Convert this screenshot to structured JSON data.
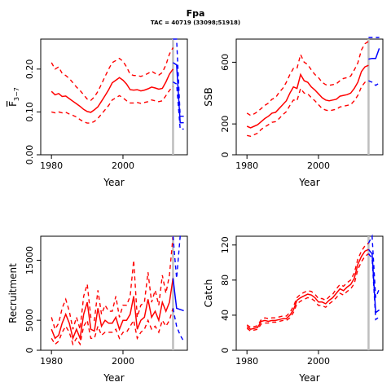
{
  "page": {
    "title": "Fpa",
    "subtitle": "TAC = 40719 (33098;51918)"
  },
  "colors": {
    "historic": "#ff0000",
    "forecast": "#0000ff",
    "divider": "#bebebe"
  },
  "chart_data": [
    {
      "type": "line",
      "id": "fbar",
      "ylabel": "F3-7",
      "ylabel_main": "F",
      "ylabel_sub": "3−7",
      "xlabel": "Year",
      "xlim": [
        1977,
        2018
      ],
      "ylim": [
        0,
        0.27
      ],
      "xticks": [
        1980,
        2000
      ],
      "yticks": [
        0.0,
        0.1,
        0.2
      ],
      "ytick_labels": [
        "0.00",
        "0.10",
        "0.20"
      ],
      "divider_year": 2014,
      "years": [
        1980,
        1981,
        1982,
        1983,
        1984,
        1985,
        1986,
        1987,
        1988,
        1989,
        1990,
        1991,
        1992,
        1993,
        1994,
        1995,
        1996,
        1997,
        1998,
        1999,
        2000,
        2001,
        2002,
        2003,
        2004,
        2005,
        2006,
        2007,
        2008,
        2009,
        2010,
        2011,
        2012,
        2013,
        2014
      ],
      "estimate": [
        0.148,
        0.14,
        0.143,
        0.136,
        0.137,
        0.131,
        0.125,
        0.119,
        0.113,
        0.106,
        0.101,
        0.099,
        0.105,
        0.112,
        0.125,
        0.138,
        0.152,
        0.168,
        0.174,
        0.18,
        0.174,
        0.165,
        0.152,
        0.151,
        0.152,
        0.149,
        0.151,
        0.154,
        0.158,
        0.156,
        0.153,
        0.155,
        0.17,
        0.188,
        0.2
      ],
      "lower": [
        0.1,
        0.098,
        0.1,
        0.098,
        0.099,
        0.095,
        0.092,
        0.088,
        0.082,
        0.077,
        0.074,
        0.074,
        0.078,
        0.085,
        0.095,
        0.105,
        0.115,
        0.128,
        0.133,
        0.138,
        0.133,
        0.126,
        0.121,
        0.121,
        0.122,
        0.12,
        0.122,
        0.124,
        0.128,
        0.126,
        0.124,
        0.126,
        0.138,
        0.15,
        0.16
      ],
      "upper": [
        0.215,
        0.2,
        0.205,
        0.19,
        0.185,
        0.178,
        0.168,
        0.158,
        0.15,
        0.14,
        0.13,
        0.127,
        0.135,
        0.148,
        0.165,
        0.183,
        0.2,
        0.215,
        0.22,
        0.225,
        0.218,
        0.205,
        0.188,
        0.185,
        0.185,
        0.183,
        0.186,
        0.19,
        0.195,
        0.19,
        0.186,
        0.192,
        0.21,
        0.235,
        0.25
      ],
      "forecast_years": [
        2014,
        2015,
        2016,
        2017
      ],
      "forecast_estimate": [
        0.215,
        0.21,
        0.075,
        0.075
      ],
      "forecast_lower": [
        0.17,
        0.165,
        0.06,
        0.06
      ],
      "forecast_upper": [
        0.27,
        0.27,
        0.09,
        0.09
      ]
    },
    {
      "type": "line",
      "id": "ssb",
      "ylabel": "SSB",
      "xlabel": "Year",
      "xlim": [
        1977,
        2018
      ],
      "ylim": [
        0,
        750
      ],
      "xticks": [
        1980,
        2000
      ],
      "yticks": [
        0,
        200,
        600
      ],
      "ytick_labels": [
        "0",
        "200",
        "600"
      ],
      "divider_year": 2014,
      "years": [
        1980,
        1981,
        1982,
        1983,
        1984,
        1985,
        1986,
        1987,
        1988,
        1989,
        1990,
        1991,
        1992,
        1993,
        1994,
        1995,
        1996,
        1997,
        1998,
        1999,
        2000,
        2001,
        2002,
        2003,
        2004,
        2005,
        2006,
        2007,
        2008,
        2009,
        2010,
        2011,
        2012,
        2013,
        2014
      ],
      "estimate": [
        185,
        175,
        185,
        195,
        215,
        235,
        250,
        270,
        275,
        300,
        325,
        350,
        400,
        440,
        430,
        520,
        480,
        470,
        440,
        420,
        395,
        370,
        355,
        350,
        355,
        360,
        380,
        385,
        390,
        400,
        430,
        470,
        540,
        570,
        580
      ],
      "lower": [
        125,
        120,
        130,
        140,
        165,
        180,
        195,
        210,
        215,
        235,
        260,
        280,
        320,
        355,
        350,
        430,
        400,
        395,
        370,
        350,
        325,
        300,
        290,
        285,
        290,
        295,
        310,
        315,
        320,
        325,
        350,
        385,
        440,
        470,
        475
      ],
      "upper": [
        270,
        255,
        265,
        280,
        300,
        320,
        335,
        360,
        370,
        405,
        430,
        470,
        520,
        560,
        560,
        650,
        600,
        585,
        550,
        520,
        500,
        470,
        455,
        450,
        455,
        460,
        480,
        495,
        500,
        510,
        550,
        595,
        680,
        720,
        735
      ],
      "forecast_years": [
        2014,
        2015,
        2016,
        2017
      ],
      "forecast_estimate": [
        620,
        625,
        625,
        690
      ],
      "forecast_lower": [
        480,
        470,
        450,
        465
      ],
      "forecast_upper": [
        780,
        790,
        805,
        830
      ]
    },
    {
      "type": "line",
      "id": "recruitment",
      "ylabel": "Recruitment",
      "xlabel": "Year",
      "xlim": [
        1977,
        2018
      ],
      "ylim": [
        0,
        19000
      ],
      "xticks": [
        1980,
        2000
      ],
      "yticks": [
        0,
        5000,
        15000
      ],
      "ytick_labels": [
        "0",
        "5000",
        "15000"
      ],
      "divider_year": 2014,
      "years": [
        1980,
        1981,
        1982,
        1983,
        1984,
        1985,
        1986,
        1987,
        1988,
        1989,
        1990,
        1991,
        1992,
        1993,
        1994,
        1995,
        1996,
        1997,
        1998,
        1999,
        2000,
        2001,
        2002,
        2003,
        2004,
        2005,
        2006,
        2007,
        2008,
        2009,
        2010,
        2011,
        2012,
        2013,
        2014
      ],
      "estimate": [
        3500,
        2000,
        2500,
        4500,
        6000,
        4500,
        2000,
        3500,
        2000,
        6000,
        8000,
        3500,
        3200,
        7000,
        4000,
        5000,
        4500,
        4500,
        5500,
        3500,
        5000,
        5000,
        6000,
        9000,
        3500,
        5000,
        5500,
        8500,
        5500,
        6500,
        5000,
        8000,
        6500,
        8000,
        12000
      ],
      "lower": [
        2000,
        1000,
        1500,
        3000,
        4000,
        3000,
        1000,
        2000,
        1000,
        4000,
        5000,
        2000,
        2000,
        4000,
        2500,
        3000,
        3000,
        3000,
        3500,
        2000,
        3000,
        3000,
        4000,
        5000,
        2000,
        3000,
        3500,
        5000,
        3500,
        4000,
        3000,
        5000,
        4000,
        5000,
        7000
      ],
      "upper": [
        5500,
        3500,
        4500,
        7000,
        8500,
        6500,
        3500,
        5500,
        3500,
        9000,
        11000,
        5500,
        5000,
        10000,
        6000,
        7500,
        6500,
        6500,
        9000,
        5500,
        7500,
        7500,
        9000,
        15000,
        5500,
        7500,
        8000,
        13000,
        8000,
        10000,
        7500,
        12500,
        9500,
        12500,
        19000
      ],
      "forecast_years": [
        2014,
        2015,
        2016,
        2017
      ],
      "forecast_estimate": [
        12000,
        7000,
        6800,
        6600
      ],
      "forecast_lower": [
        7000,
        4000,
        2500,
        1500
      ],
      "forecast_upper": [
        19000,
        12000,
        19000,
        19000
      ]
    },
    {
      "type": "line",
      "id": "catch",
      "ylabel": "Catch",
      "xlabel": "Year",
      "xlim": [
        1977,
        2018
      ],
      "ylim": [
        0,
        130
      ],
      "xticks": [
        1980,
        2000
      ],
      "yticks": [
        0,
        40,
        80,
        120
      ],
      "ytick_labels": [
        "0",
        "40",
        "80",
        "120"
      ],
      "divider_year": 2014,
      "years": [
        1980,
        1981,
        1982,
        1983,
        1984,
        1985,
        1986,
        1987,
        1988,
        1989,
        1990,
        1991,
        1992,
        1993,
        1994,
        1995,
        1996,
        1997,
        1998,
        1999,
        2000,
        2001,
        2002,
        2003,
        2004,
        2005,
        2006,
        2007,
        2008,
        2009,
        2010,
        2011,
        2012,
        2013,
        2014
      ],
      "estimate": [
        27,
        24,
        25,
        26,
        33,
        34,
        33,
        34,
        34,
        35,
        36,
        36,
        40,
        46,
        57,
        60,
        62,
        64,
        63,
        60,
        55,
        55,
        53,
        57,
        60,
        65,
        70,
        68,
        72,
        75,
        82,
        98,
        107,
        113,
        115
      ],
      "lower": [
        25,
        22,
        23,
        24,
        30,
        31,
        31,
        32,
        32,
        33,
        34,
        34,
        37,
        43,
        53,
        56,
        58,
        60,
        59,
        56,
        51,
        51,
        49,
        53,
        56,
        60,
        65,
        63,
        67,
        70,
        76,
        92,
        101,
        107,
        110
      ],
      "upper": [
        29,
        26,
        27,
        28,
        35,
        37,
        36,
        37,
        37,
        38,
        39,
        39,
        43,
        50,
        60,
        64,
        66,
        68,
        67,
        64,
        59,
        59,
        57,
        61,
        64,
        70,
        75,
        73,
        77,
        80,
        88,
        104,
        113,
        119,
        122
      ],
      "forecast_years": [
        2014,
        2015,
        2016,
        2017
      ],
      "forecast_estimate": [
        115,
        110,
        43,
        46
      ],
      "forecast_lower": [
        110,
        105,
        35,
        38
      ],
      "forecast_upper": [
        122,
        130,
        60,
        70
      ]
    }
  ]
}
